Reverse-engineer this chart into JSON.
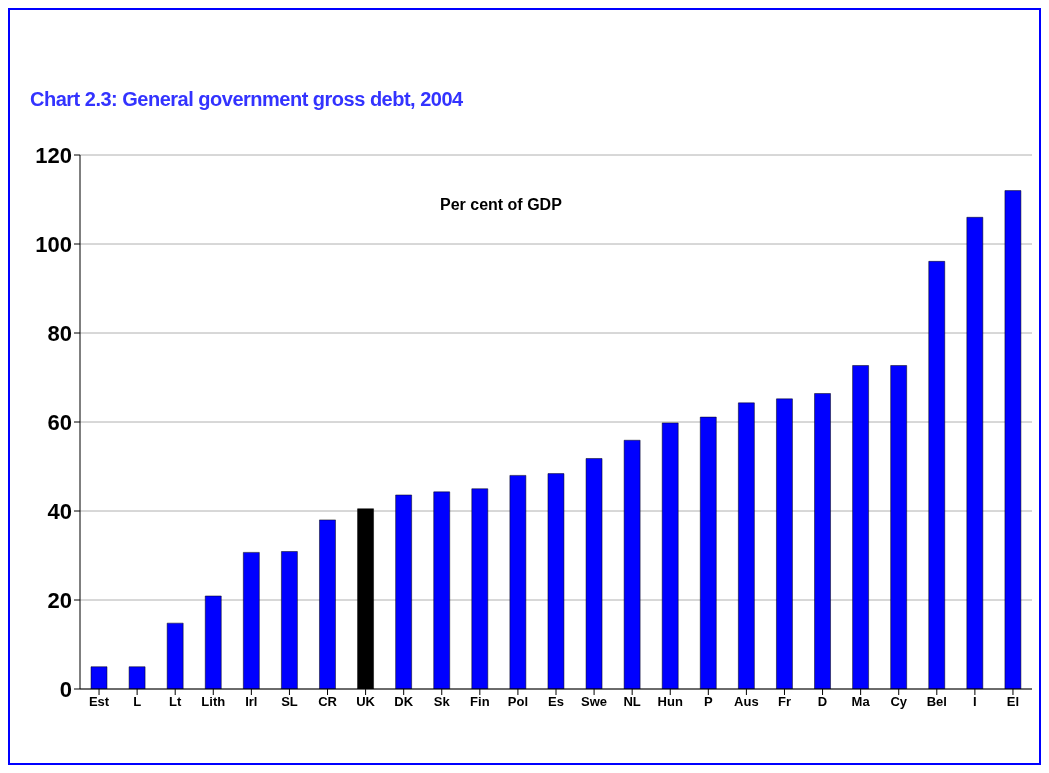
{
  "chart_data": {
    "type": "bar",
    "title": "Chart 2.3: General government gross debt, 2004",
    "annotations": [
      "Per cent of GDP"
    ],
    "categories": [
      "Est",
      "L",
      "Lt",
      "Lith",
      "Irl",
      "SL",
      "CR",
      "UK",
      "DK",
      "Sk",
      "Fin",
      "Pol",
      "Es",
      "Swe",
      "NL",
      "Hun",
      "P",
      "Aus",
      "Fr",
      "D",
      "Ma",
      "Cy",
      "Bel",
      "I",
      "El"
    ],
    "values": [
      5,
      5,
      14.8,
      20.9,
      30.7,
      30.9,
      38,
      40.5,
      43.6,
      44.3,
      45,
      48,
      48.4,
      51.8,
      55.9,
      59.8,
      61.1,
      64.3,
      65.2,
      66.4,
      72.7,
      72.7,
      96.1,
      106,
      112
    ],
    "colors": [
      "#0000ff",
      "#0000ff",
      "#0000ff",
      "#0000ff",
      "#0000ff",
      "#0000ff",
      "#0000ff",
      "#000000",
      "#0000ff",
      "#0000ff",
      "#0000ff",
      "#0000ff",
      "#0000ff",
      "#0000ff",
      "#0000ff",
      "#0000ff",
      "#0000ff",
      "#0000ff",
      "#0000ff",
      "#0000ff",
      "#0000ff",
      "#0000ff",
      "#0000ff",
      "#0000ff",
      "#0000ff"
    ],
    "ylim": [
      0,
      120
    ],
    "yticks": [
      0,
      20,
      40,
      60,
      80,
      100,
      120
    ],
    "grid": "y"
  }
}
